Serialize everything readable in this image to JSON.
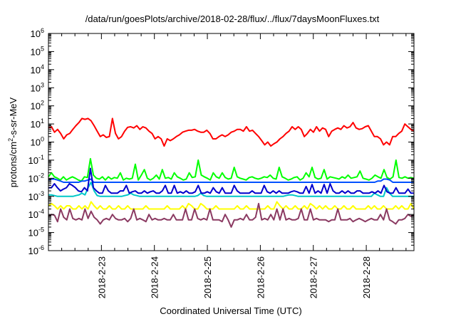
{
  "chart_data": {
    "type": "line",
    "title": "/data/run/goesPlots/archive/2018-02-28/flux/../flux/7daysMoonFluxes.txt",
    "xlabel": "Coordinated Universal Time (UTC)",
    "ylabel_main": "protons/cm",
    "ylabel_sup": "2",
    "ylabel_rest": "-s-sr-MeV",
    "y_scale": "log",
    "ylim": [
      1e-06,
      1000000.0
    ],
    "y_ticks": [
      {
        "base": "10",
        "exp": "-6"
      },
      {
        "base": "10",
        "exp": "-5"
      },
      {
        "base": "10",
        "exp": "-4"
      },
      {
        "base": "10",
        "exp": "-3"
      },
      {
        "base": "10",
        "exp": "-2"
      },
      {
        "base": "10",
        "exp": "-1"
      },
      {
        "base": "10",
        "exp": "0"
      },
      {
        "base": "10",
        "exp": "1"
      },
      {
        "base": "10",
        "exp": "2"
      },
      {
        "base": "10",
        "exp": "3"
      },
      {
        "base": "10",
        "exp": "4"
      },
      {
        "base": "10",
        "exp": "5"
      },
      {
        "base": "10",
        "exp": "6"
      }
    ],
    "x_range_days": [
      0,
      6.9
    ],
    "x_ticks": [
      {
        "label": "2018-2-23",
        "day": 1.0
      },
      {
        "label": "2018-2-24",
        "day": 2.0
      },
      {
        "label": "2018-2-25",
        "day": 3.0
      },
      {
        "label": "2018-2-26",
        "day": 4.0
      },
      {
        "label": "2018-2-27",
        "day": 5.0
      },
      {
        "label": "2018-2-28",
        "day": 6.0
      }
    ],
    "grid": false,
    "legend": "none",
    "series": [
      {
        "color": "#ff0000",
        "values": [
          6,
          7,
          3.5,
          5,
          3,
          1.5,
          2.5,
          3,
          5,
          8,
          12,
          20,
          18,
          20,
          15,
          8,
          4,
          2,
          2.5,
          1.8,
          2,
          20,
          3,
          1.5,
          2,
          4,
          6.5,
          7,
          6,
          8,
          5,
          7,
          6,
          4,
          3,
          1.5,
          2,
          1.5,
          0.6,
          1.5,
          1.2,
          1.5,
          2,
          2.5,
          3.5,
          4,
          4.5,
          4.5,
          5,
          4,
          3.5,
          3.5,
          4.5,
          3,
          1.5,
          1.5,
          2,
          2.5,
          2,
          2.5,
          3.5,
          4,
          5,
          5,
          4,
          7,
          4,
          4.5,
          3,
          2,
          1.2,
          0.7,
          1,
          0.6,
          0.8,
          1,
          1.5,
          2,
          3,
          4,
          7,
          5,
          7,
          5,
          2,
          3,
          5,
          3.5,
          7,
          4,
          6,
          5,
          2,
          4,
          5,
          6,
          5,
          8,
          6,
          7,
          12,
          6,
          5,
          5.5,
          7,
          8,
          4,
          2,
          2,
          1.5,
          0.7,
          1,
          0.7,
          2,
          2,
          3,
          4,
          10,
          7,
          5,
          4
        ]
      },
      {
        "color": "#00ff00",
        "values": [
          0.012,
          0.02,
          0.012,
          0.01,
          0.008,
          0.012,
          0.008,
          0.01,
          0.012,
          0.01,
          0.008,
          0.007,
          0.012,
          0.011,
          0.12,
          0.015,
          0.01,
          0.009,
          0.012,
          0.008,
          0.012,
          0.009,
          0.011,
          0.01,
          0.02,
          0.008,
          0.01,
          0.009,
          0.01,
          0.06,
          0.008,
          0.015,
          0.03,
          0.01,
          0.008,
          0.01,
          0.015,
          0.009,
          0.03,
          0.01,
          0.011,
          0.009,
          0.02,
          0.012,
          0.01,
          0.008,
          0.009,
          0.02,
          0.011,
          0.012,
          0.1,
          0.015,
          0.012,
          0.01,
          0.008,
          0.02,
          0.012,
          0.01,
          0.02,
          0.011,
          0.009,
          0.01,
          0.04,
          0.012,
          0.01,
          0.009,
          0.008,
          0.011,
          0.012,
          0.01,
          0.009,
          0.01,
          0.012,
          0.011,
          0.015,
          0.01,
          0.009,
          0.04,
          0.012,
          0.01,
          0.008,
          0.009,
          0.011,
          0.012,
          0.008,
          0.01,
          0.02,
          0.012,
          0.04,
          0.011,
          0.009,
          0.01,
          0.03,
          0.009,
          0.012,
          0.011,
          0.01,
          0.009,
          0.012,
          0.01,
          0.015,
          0.01,
          0.011,
          0.012,
          0.025,
          0.01,
          0.009,
          0.008,
          0.01,
          0.015,
          0.012,
          0.01,
          0.03,
          0.011,
          0.009,
          0.012,
          0.1,
          0.011,
          0.01,
          0.012,
          0.01,
          0.011,
          0.01
        ]
      },
      {
        "color": "#0050ff",
        "values": [
          0.008,
          0.009,
          0.009,
          0.008,
          0.007,
          0.006,
          0.006,
          0.006,
          0.006,
          0.006,
          0.006,
          0.007,
          0.007,
          0.008,
          0.009,
          0.006,
          0.006,
          0.006,
          0.006,
          0.006,
          0.006,
          0.006,
          0.006,
          0.006,
          0.006,
          0.006,
          0.006,
          0.006,
          0.006,
          0.006,
          0.006,
          0.006,
          0.006,
          0.006,
          0.006,
          0.006,
          0.006,
          0.006,
          0.006,
          0.006,
          0.006,
          0.006,
          0.006,
          0.006,
          0.006,
          0.006,
          0.006,
          0.006,
          0.006,
          0.006,
          0.006,
          0.006,
          0.006,
          0.006,
          0.006,
          0.006,
          0.006,
          0.006,
          0.006,
          0.006,
          0.006,
          0.006,
          0.006,
          0.006,
          0.006,
          0.006,
          0.006,
          0.006,
          0.006,
          0.006,
          0.006,
          0.006,
          0.006,
          0.006,
          0.006,
          0.006,
          0.006,
          0.006,
          0.006,
          0.006,
          0.006,
          0.006,
          0.006,
          0.006,
          0.006,
          0.006,
          0.006,
          0.006,
          0.006,
          0.006,
          0.006,
          0.006,
          0.006,
          0.006,
          0.006,
          0.006,
          0.006,
          0.006,
          0.006,
          0.006,
          0.006,
          0.006,
          0.006,
          0.006,
          0.006,
          0.006,
          0.006,
          0.006,
          0.006,
          0.007,
          0.007,
          0.009,
          0.009,
          0.008,
          0.006,
          0.006,
          0.006,
          0.006,
          0.006,
          0.006,
          0.006,
          0.006
        ]
      },
      {
        "color": "#00c8c8",
        "values": [
          0.0012,
          0.0012,
          0.0011,
          0.001,
          0.001,
          0.001,
          0.001,
          0.001,
          0.001,
          0.0011,
          0.0012,
          0.0015,
          0.0012,
          0.003,
          0.006,
          0.002,
          0.0011,
          0.001,
          0.001,
          0.001,
          0.001,
          0.001,
          0.001,
          0.001,
          0.001,
          0.0011,
          0.0012,
          0.0015,
          0.0012,
          0.0011,
          0.001,
          0.001,
          0.001,
          0.001,
          0.001,
          0.001,
          0.001,
          0.001,
          0.001,
          0.001,
          0.001,
          0.001,
          0.001,
          0.001,
          0.001,
          0.001,
          0.001,
          0.001,
          0.001,
          0.0011,
          0.0015,
          0.0011,
          0.001,
          0.001,
          0.001,
          0.001,
          0.001,
          0.001,
          0.001,
          0.001,
          0.001,
          0.001,
          0.001,
          0.001,
          0.001,
          0.001,
          0.001,
          0.001,
          0.001,
          0.001,
          0.001,
          0.001,
          0.001,
          0.001,
          0.001,
          0.001,
          0.001,
          0.001,
          0.0011,
          0.0012,
          0.0012,
          0.0011,
          0.001,
          0.001,
          0.001,
          0.001,
          0.001,
          0.001,
          0.001,
          0.001,
          0.001,
          0.001,
          0.001,
          0.001,
          0.001,
          0.001,
          0.001,
          0.001,
          0.001,
          0.001,
          0.001,
          0.001,
          0.001,
          0.001,
          0.001,
          0.001,
          0.001,
          0.0015,
          0.0012,
          0.001,
          0.001,
          0.003,
          0.0015,
          0.001,
          0.001,
          0.001,
          0.001,
          0.001,
          0.001,
          0.001,
          0.001
        ]
      },
      {
        "color": "#0000cc",
        "values": [
          0.003,
          0.003,
          0.005,
          0.003,
          0.002,
          0.0025,
          0.003,
          0.005,
          0.004,
          0.003,
          0.002,
          0.0018,
          0.003,
          0.002,
          0.035,
          0.003,
          0.002,
          0.0015,
          0.0015,
          0.004,
          0.002,
          0.0015,
          0.0015,
          0.0015,
          0.002,
          0.002,
          0.004,
          0.0015,
          0.0018,
          0.002,
          0.0015,
          0.0015,
          0.002,
          0.0015,
          0.0018,
          0.002,
          0.0015,
          0.0015,
          0.002,
          0.004,
          0.0015,
          0.0015,
          0.004,
          0.0015,
          0.0018,
          0.0015,
          0.002,
          0.0015,
          0.0015,
          0.0018,
          0.004,
          0.0015,
          0.0015,
          0.0018,
          0.0015,
          0.003,
          0.0018,
          0.0015,
          0.003,
          0.0015,
          0.0015,
          0.0015,
          0.004,
          0.002,
          0.0015,
          0.0015,
          0.0015,
          0.0015,
          0.002,
          0.0015,
          0.0015,
          0.0015,
          0.004,
          0.0018,
          0.0015,
          0.002,
          0.0015,
          0.002,
          0.0015,
          0.0015,
          0.0015,
          0.0018,
          0.002,
          0.0018,
          0.0015,
          0.0015,
          0.0035,
          0.0015,
          0.0045,
          0.0015,
          0.002,
          0.0015,
          0.0045,
          0.0015,
          0.005,
          0.002,
          0.0015,
          0.0015,
          0.002,
          0.0015,
          0.002,
          0.0015,
          0.0015,
          0.002,
          0.002,
          0.0015,
          0.0015,
          0.0015,
          0.0018,
          0.0015,
          0.002,
          0.0015,
          0.004,
          0.0018,
          0.0015,
          0.0015,
          0.003,
          0.0015,
          0.0015,
          0.0015,
          0.0025,
          0.0015,
          0.0015
        ]
      },
      {
        "color": "#ffff00",
        "values": [
          0.0003,
          0.0004,
          0.0003,
          0.0002,
          0.0003,
          0.0002,
          0.0003,
          0.0003,
          0.0002,
          0.0002,
          0.0003,
          0.0002,
          0.0003,
          0.0002,
          0.0005,
          0.0003,
          0.0002,
          0.0003,
          0.0002,
          0.0002,
          0.0003,
          0.0002,
          0.0002,
          0.0003,
          0.0002,
          0.0002,
          0.0003,
          0.0002,
          0.0002,
          0.0002,
          0.0002,
          0.0002,
          0.0003,
          0.0002,
          0.0002,
          0.0002,
          0.0002,
          0.0002,
          0.0002,
          0.0003,
          0.0002,
          0.0002,
          0.0002,
          0.0002,
          0.0003,
          0.0002,
          0.0004,
          0.0003,
          0.0002,
          0.0002,
          0.0004,
          0.0003,
          0.0002,
          0.0002,
          0.0002,
          0.0003,
          0.0002,
          0.0002,
          0.0002,
          0.0002,
          0.0002,
          0.0002,
          0.0003,
          0.0002,
          0.0002,
          0.0003,
          0.0002,
          0.0002,
          0.0002,
          0.0002,
          0.0002,
          0.0002,
          0.0003,
          0.0002,
          0.0002,
          0.0005,
          0.0003,
          0.0002,
          0.0003,
          0.0002,
          0.0002,
          0.0003,
          0.0002,
          0.0002,
          0.0003,
          0.0002,
          0.0004,
          0.0003,
          0.0002,
          0.0003,
          0.0002,
          0.0003,
          0.0002,
          0.0002,
          0.0003,
          0.0002,
          0.0002,
          0.0003,
          0.0002,
          0.0002,
          0.0003,
          0.0002,
          0.0002,
          0.0002,
          0.0002,
          0.0003,
          0.0002,
          0.0003,
          0.0002,
          0.0002,
          0.0003,
          0.0002,
          0.0002,
          0.0002,
          0.0003,
          0.0002,
          0.0003,
          0.0002,
          0.0002,
          0.0004,
          0.0002
        ]
      },
      {
        "color": "#8b3a62",
        "values": [
          8e-05,
          0.0001,
          9e-05,
          4e-05,
          0.0002,
          7e-05,
          5e-05,
          0.0002,
          6e-05,
          5e-05,
          6e-05,
          5e-05,
          0.0002,
          6e-05,
          0.00015,
          7e-05,
          5e-05,
          3e-05,
          5e-05,
          6e-05,
          5e-05,
          0.0001,
          6e-05,
          5e-05,
          5e-05,
          6e-05,
          4e-05,
          6e-05,
          0.0002,
          5e-05,
          6e-05,
          5e-05,
          4e-05,
          0.0001,
          5e-05,
          6e-05,
          5e-05,
          5e-05,
          6e-05,
          5e-05,
          5e-05,
          0.0001,
          5e-05,
          5e-05,
          5e-05,
          0.0002,
          5e-05,
          5e-05,
          0.0002,
          6e-05,
          5e-05,
          6e-05,
          5e-05,
          0.0002,
          5e-05,
          5e-05,
          5e-05,
          4e-05,
          0.0001,
          5e-05,
          2e-05,
          5e-05,
          5e-05,
          6e-05,
          5e-05,
          0.0001,
          5e-05,
          5e-05,
          7e-05,
          0.0004,
          5e-05,
          6e-05,
          5e-05,
          0.0001,
          5e-05,
          0.0002,
          5e-05,
          0.0002,
          5e-05,
          6e-05,
          5e-05,
          5e-05,
          6e-05,
          0.0002,
          5e-05,
          5e-05,
          0.0002,
          5e-05,
          6e-05,
          5e-05,
          5e-05,
          5e-05,
          4e-05,
          5e-05,
          5e-05,
          0.0002,
          5e-05,
          5e-05,
          5e-05,
          6e-05,
          4e-05,
          5e-05,
          6e-05,
          5e-05,
          4e-05,
          5e-05,
          6e-05,
          5e-05,
          5e-05,
          0.0001,
          5e-05,
          0.0002,
          5e-05,
          4e-05,
          3e-05,
          5e-05,
          5e-05,
          6e-05,
          0.0001,
          8e-05,
          9e-05
        ]
      }
    ]
  }
}
